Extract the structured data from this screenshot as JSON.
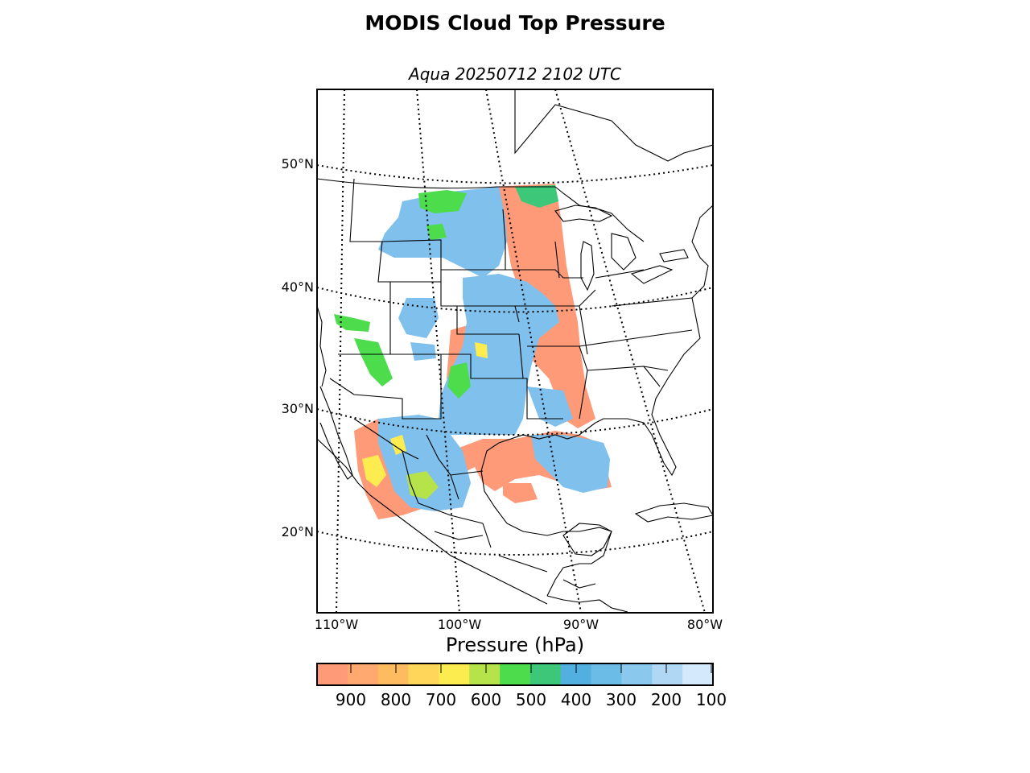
{
  "title": "MODIS Cloud Top Pressure",
  "subtitle": "Aqua 20250712 2102 UTC",
  "lat_labels": [
    "50°N",
    "40°N",
    "30°N",
    "20°N"
  ],
  "lon_labels": [
    "110°W",
    "100°W",
    "90°W",
    "80°W"
  ],
  "colorbar": {
    "label": "Pressure (hPa)",
    "ticks": [
      "900",
      "800",
      "700",
      "600",
      "500",
      "400",
      "300",
      "200",
      "100"
    ],
    "colors": [
      "#ff9a78",
      "#ffa870",
      "#ffbb60",
      "#ffd65a",
      "#fcec50",
      "#b6e24a",
      "#4cdc4c",
      "#3cc878",
      "#52b0e0",
      "#6cbce8",
      "#8ac8ee",
      "#b0d8f4",
      "#d4eafc"
    ]
  },
  "colors": {
    "low_cloud": "#ff9a78",
    "mid_yellow": "#fcec50",
    "mid_green": "#4cdc4c",
    "high_blue": "#7fc0ec"
  }
}
